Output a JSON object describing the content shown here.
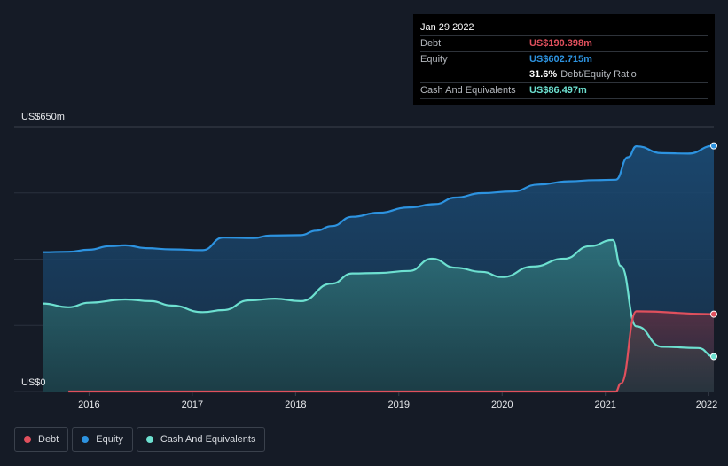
{
  "tooltip": {
    "date": "Jan 29 2022",
    "debt_label": "Debt",
    "debt_value": "US$190.398m",
    "equity_label": "Equity",
    "equity_value": "US$602.715m",
    "ratio_value": "31.6%",
    "ratio_label": "Debt/Equity Ratio",
    "cash_label": "Cash And Equivalents",
    "cash_value": "US$86.497m"
  },
  "colors": {
    "background": "#151b26",
    "debt": "#e0505d",
    "equity": "#2d93e0",
    "cash": "#6de0d0",
    "gridline": "#2a313d"
  },
  "chart_data": {
    "type": "area",
    "y_top_label": "US$650m",
    "y_bottom_label": "US$0",
    "ylim": [
      0,
      650
    ],
    "xlim": [
      2015.55,
      2022.05
    ],
    "x_ticks": [
      "2016",
      "2017",
      "2018",
      "2019",
      "2020",
      "2021",
      "2022"
    ],
    "legend_position": "bottom-left",
    "series": [
      {
        "name": "Debt",
        "color": "#e0505d",
        "x": [
          2015.8,
          2021.1,
          2021.15,
          2021.3,
          2022.05
        ],
        "values": [
          0,
          0,
          20,
          197,
          190
        ]
      },
      {
        "name": "Equity",
        "color": "#2d93e0",
        "x": [
          2015.55,
          2015.8,
          2016.0,
          2016.2,
          2016.35,
          2016.55,
          2016.8,
          2017.1,
          2017.3,
          2017.6,
          2017.75,
          2018.05,
          2018.2,
          2018.35,
          2018.55,
          2018.8,
          2019.1,
          2019.35,
          2019.55,
          2019.8,
          2020.1,
          2020.35,
          2020.65,
          2020.9,
          2021.1,
          2021.22,
          2021.3,
          2021.55,
          2021.8,
          2022.05
        ],
        "values": [
          342,
          343,
          348,
          357,
          359,
          352,
          349,
          347,
          378,
          377,
          383,
          384,
          395,
          406,
          429,
          439,
          452,
          460,
          476,
          487,
          491,
          508,
          516,
          519,
          520,
          575,
          602,
          585,
          584,
          603
        ]
      },
      {
        "name": "Cash And Equivalents",
        "color": "#6de0d0",
        "x": [
          2015.55,
          2015.8,
          2016.0,
          2016.35,
          2016.6,
          2016.8,
          2017.1,
          2017.3,
          2017.55,
          2017.8,
          2018.05,
          2018.35,
          2018.55,
          2018.8,
          2019.1,
          2019.32,
          2019.55,
          2019.8,
          2020.0,
          2020.3,
          2020.6,
          2020.85,
          2021.07,
          2021.15,
          2021.3,
          2021.55,
          2021.9,
          2022.05
        ],
        "values": [
          216,
          207,
          218,
          226,
          222,
          211,
          195,
          200,
          224,
          228,
          222,
          265,
          290,
          291,
          296,
          326,
          304,
          294,
          281,
          307,
          326,
          357,
          372,
          308,
          160,
          110,
          107,
          86
        ]
      }
    ]
  },
  "legend": [
    {
      "label": "Debt",
      "color": "#e0505d"
    },
    {
      "label": "Equity",
      "color": "#2d93e0"
    },
    {
      "label": "Cash And Equivalents",
      "color": "#6de0d0"
    }
  ]
}
